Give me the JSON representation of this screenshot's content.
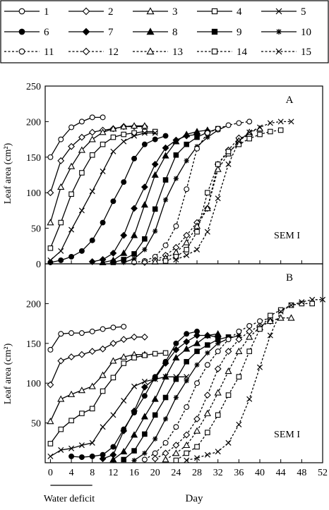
{
  "colors": {
    "ink": "#000000",
    "background": "#ffffff"
  },
  "legend": {
    "placement": "top",
    "entries": [
      {
        "label": "1",
        "marker": "circle-open",
        "dashed": false
      },
      {
        "label": "2",
        "marker": "diamond-open",
        "dashed": false
      },
      {
        "label": "3",
        "marker": "triangle-open",
        "dashed": false
      },
      {
        "label": "4",
        "marker": "square-open",
        "dashed": false
      },
      {
        "label": "5",
        "marker": "x",
        "dashed": false
      },
      {
        "label": "6",
        "marker": "circle-filled",
        "dashed": false
      },
      {
        "label": "7",
        "marker": "diamond-filled",
        "dashed": false
      },
      {
        "label": "8",
        "marker": "triangle-filled",
        "dashed": false
      },
      {
        "label": "9",
        "marker": "square-filled",
        "dashed": false
      },
      {
        "label": "10",
        "marker": "asterisk",
        "dashed": false
      },
      {
        "label": "11",
        "marker": "circle-open",
        "dashed": true
      },
      {
        "label": "12",
        "marker": "diamond-open",
        "dashed": true
      },
      {
        "label": "13",
        "marker": "triangle-open",
        "dashed": true
      },
      {
        "label": "14",
        "marker": "square-open",
        "dashed": true
      },
      {
        "label": "15",
        "marker": "x",
        "dashed": true
      }
    ]
  },
  "axes": {
    "ylabel": "Leaf area (cm²)",
    "xlabel": "Day",
    "x_ticks": [
      "0",
      "4",
      "8",
      "12",
      "16",
      "20",
      "24",
      "28",
      "32",
      "36",
      "40",
      "44",
      "48",
      "52"
    ],
    "y_ticks_a": [
      "0",
      "50",
      "100",
      "150",
      "200",
      "250"
    ],
    "y_ticks_b": [
      "50",
      "100",
      "150",
      "200"
    ],
    "water_deficit_label": "Water deficit",
    "water_deficit_range": [
      0,
      8
    ]
  },
  "chart_data": [
    {
      "type": "line",
      "panel_label": "A",
      "annotation": "SEM I",
      "xlim": [
        -1,
        52
      ],
      "ylim": [
        0,
        250
      ],
      "grid": false,
      "series": [
        {
          "name": "1",
          "x": [
            0,
            2,
            4,
            6,
            8,
            10
          ],
          "y": [
            150,
            175,
            192,
            200,
            206,
            206
          ]
        },
        {
          "name": "2",
          "x": [
            0,
            2,
            4,
            6,
            8,
            10,
            12,
            14,
            16,
            18
          ],
          "y": [
            100,
            145,
            165,
            178,
            185,
            188,
            190,
            193,
            193,
            193
          ]
        },
        {
          "name": "3",
          "x": [
            0,
            2,
            4,
            6,
            8,
            10,
            12,
            14,
            16,
            18
          ],
          "y": [
            58,
            108,
            137,
            160,
            175,
            185,
            190,
            193,
            194,
            194
          ]
        },
        {
          "name": "4",
          "x": [
            0,
            2,
            4,
            6,
            8,
            10,
            12,
            14,
            16,
            18,
            20
          ],
          "y": [
            22,
            58,
            98,
            128,
            153,
            168,
            178,
            182,
            184,
            186,
            186
          ]
        },
        {
          "name": "5",
          "x": [
            0,
            2,
            4,
            6,
            8,
            10,
            12,
            14,
            16,
            18,
            20
          ],
          "y": [
            5,
            18,
            48,
            75,
            102,
            130,
            158,
            172,
            180,
            184,
            184
          ]
        },
        {
          "name": "6",
          "x": [
            0,
            2,
            4,
            6,
            8,
            10,
            12,
            14,
            16,
            18,
            20,
            22
          ],
          "y": [
            2,
            5,
            10,
            18,
            33,
            58,
            88,
            115,
            148,
            168,
            175,
            180
          ]
        },
        {
          "name": "7",
          "x": [
            8,
            10,
            12,
            14,
            16,
            18,
            20,
            22,
            24,
            26,
            28
          ],
          "y": [
            3,
            6,
            15,
            40,
            78,
            108,
            140,
            163,
            174,
            180,
            182
          ]
        },
        {
          "name": "8",
          "x": [
            10,
            12,
            14,
            16,
            18,
            20,
            22,
            24,
            26,
            28,
            30
          ],
          "y": [
            2,
            5,
            15,
            40,
            83,
            125,
            152,
            172,
            182,
            186,
            188
          ]
        },
        {
          "name": "9",
          "x": [
            12,
            14,
            16,
            18,
            20,
            22,
            24,
            26,
            28,
            30,
            32
          ],
          "y": [
            2,
            6,
            14,
            35,
            77,
            118,
            153,
            168,
            178,
            185,
            190
          ]
        },
        {
          "name": "10",
          "x": [
            14,
            16,
            18,
            20,
            22,
            24,
            26,
            28,
            30,
            32,
            34
          ],
          "y": [
            2,
            7,
            20,
            46,
            90,
            120,
            145,
            165,
            178,
            188,
            195
          ]
        },
        {
          "name": "11",
          "x": [
            16,
            18,
            20,
            22,
            24,
            26,
            28,
            30,
            32,
            34,
            36,
            38
          ],
          "y": [
            2,
            4,
            10,
            26,
            53,
            105,
            162,
            184,
            190,
            195,
            198,
            200
          ]
        },
        {
          "name": "12",
          "x": [
            18,
            20,
            22,
            24,
            26,
            28,
            30,
            32,
            34,
            36,
            38
          ],
          "y": [
            2,
            5,
            12,
            23,
            40,
            58,
            78,
            140,
            160,
            177,
            180
          ]
        },
        {
          "name": "13",
          "x": [
            20,
            22,
            24,
            26,
            28,
            30,
            32,
            34,
            36,
            38,
            40
          ],
          "y": [
            3,
            8,
            16,
            30,
            53,
            78,
            133,
            155,
            173,
            185,
            190
          ]
        },
        {
          "name": "14",
          "x": [
            22,
            24,
            26,
            28,
            30,
            32,
            34,
            36,
            38,
            40,
            42,
            44
          ],
          "y": [
            4,
            10,
            20,
            45,
            100,
            140,
            158,
            168,
            176,
            182,
            186,
            188
          ]
        },
        {
          "name": "15",
          "x": [
            24,
            26,
            28,
            30,
            32,
            34,
            36,
            38,
            40,
            42,
            44,
            46
          ],
          "y": [
            6,
            12,
            20,
            45,
            92,
            140,
            172,
            185,
            192,
            198,
            200,
            200
          ]
        }
      ]
    },
    {
      "type": "line",
      "panel_label": "B",
      "annotation": "SEM I",
      "xlim": [
        -1,
        52
      ],
      "ylim": [
        0,
        250
      ],
      "grid": false,
      "series": [
        {
          "name": "1",
          "x": [
            0,
            2,
            4,
            6,
            8,
            10,
            12,
            14
          ],
          "y": [
            142,
            162,
            163,
            163,
            165,
            168,
            170,
            171
          ]
        },
        {
          "name": "2",
          "x": [
            0,
            2,
            4,
            6,
            8,
            10,
            12,
            14,
            16,
            18
          ],
          "y": [
            98,
            128,
            133,
            136,
            140,
            143,
            150,
            155,
            158,
            158
          ]
        },
        {
          "name": "3",
          "x": [
            0,
            2,
            4,
            6,
            8,
            10,
            12,
            14,
            16,
            18
          ],
          "y": [
            52,
            80,
            86,
            91,
            96,
            110,
            128,
            133,
            136,
            136
          ]
        },
        {
          "name": "4",
          "x": [
            0,
            2,
            4,
            6,
            8,
            10,
            12,
            14,
            16,
            18,
            20,
            22
          ],
          "y": [
            24,
            42,
            53,
            62,
            68,
            90,
            107,
            125,
            132,
            135,
            137,
            138
          ]
        },
        {
          "name": "5",
          "x": [
            0,
            2,
            4,
            6,
            8,
            10,
            12,
            14,
            16,
            18,
            20,
            22,
            24,
            26
          ],
          "y": [
            8,
            16,
            18,
            22,
            25,
            45,
            60,
            78,
            96,
            102,
            105,
            108,
            108,
            108
          ]
        },
        {
          "name": "6",
          "x": [
            4,
            6,
            8,
            10,
            12,
            14,
            16,
            18,
            20,
            22,
            24,
            26,
            28
          ],
          "y": [
            8,
            7,
            8,
            10,
            20,
            42,
            63,
            84,
            108,
            127,
            150,
            162,
            165
          ]
        },
        {
          "name": "7",
          "x": [
            10,
            12,
            14,
            16,
            18,
            20,
            22,
            24,
            26,
            28,
            30,
            32
          ],
          "y": [
            5,
            10,
            40,
            65,
            95,
            106,
            125,
            142,
            152,
            160,
            160,
            158
          ]
        },
        {
          "name": "8",
          "x": [
            12,
            14,
            16,
            18,
            20,
            22,
            24,
            26,
            28,
            30,
            32
          ],
          "y": [
            4,
            14,
            35,
            58,
            80,
            108,
            132,
            143,
            150,
            160,
            162
          ]
        },
        {
          "name": "9",
          "x": [
            14,
            16,
            18,
            20,
            22,
            24,
            26,
            28,
            30,
            32,
            34
          ],
          "y": [
            4,
            15,
            36,
            60,
            82,
            105,
            127,
            140,
            148,
            155,
            158
          ]
        },
        {
          "name": "10",
          "x": [
            16,
            18,
            20,
            22,
            24,
            26,
            28,
            30,
            32,
            34,
            36
          ],
          "y": [
            3,
            12,
            30,
            55,
            82,
            103,
            123,
            138,
            150,
            156,
            160
          ]
        },
        {
          "name": "11",
          "x": [
            18,
            20,
            22,
            24,
            26,
            28,
            30,
            32,
            34,
            36,
            38,
            40,
            42
          ],
          "y": [
            4,
            12,
            25,
            45,
            70,
            100,
            123,
            140,
            155,
            165,
            172,
            178,
            182
          ]
        },
        {
          "name": "12",
          "x": [
            20,
            22,
            24,
            26,
            28,
            30,
            32,
            34,
            36,
            38,
            40,
            42
          ],
          "y": [
            5,
            12,
            22,
            35,
            55,
            85,
            118,
            140,
            155,
            165,
            172,
            178
          ]
        },
        {
          "name": "13",
          "x": [
            22,
            24,
            26,
            28,
            30,
            32,
            34,
            36,
            38,
            40,
            42,
            44,
            46
          ],
          "y": [
            4,
            12,
            22,
            40,
            62,
            88,
            115,
            140,
            158,
            170,
            178,
            182,
            182
          ]
        },
        {
          "name": "14",
          "x": [
            24,
            26,
            28,
            30,
            32,
            34,
            36,
            38,
            40,
            42,
            44,
            46,
            48,
            50
          ],
          "y": [
            3,
            12,
            20,
            38,
            60,
            85,
            108,
            140,
            168,
            185,
            192,
            198,
            200,
            200
          ]
        },
        {
          "name": "15",
          "x": [
            26,
            28,
            30,
            32,
            34,
            36,
            38,
            40,
            42,
            44,
            46,
            48,
            50,
            52
          ],
          "y": [
            3,
            6,
            10,
            14,
            25,
            48,
            80,
            120,
            160,
            190,
            198,
            202,
            205,
            205
          ]
        }
      ]
    }
  ]
}
